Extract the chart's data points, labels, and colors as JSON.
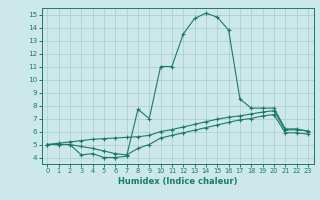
{
  "xlabel": "Humidex (Indice chaleur)",
  "ylabel": "",
  "bg_color": "#cce8e8",
  "grid_color": "#aacccc",
  "line_color": "#1a7a6a",
  "xlim": [
    -0.5,
    23.5
  ],
  "ylim": [
    3.5,
    15.5
  ],
  "xticks": [
    0,
    1,
    2,
    3,
    4,
    5,
    6,
    7,
    8,
    9,
    10,
    11,
    12,
    13,
    14,
    15,
    16,
    17,
    18,
    19,
    20,
    21,
    22,
    23
  ],
  "yticks": [
    4,
    5,
    6,
    7,
    8,
    9,
    10,
    11,
    12,
    13,
    14,
    15
  ],
  "line1_x": [
    0,
    1,
    2,
    3,
    4,
    5,
    6,
    7,
    8,
    9,
    10,
    11,
    12,
    13,
    14,
    15,
    16,
    17,
    18,
    19,
    20,
    21,
    22,
    23
  ],
  "line1_y": [
    5.0,
    5.0,
    5.0,
    4.2,
    4.3,
    4.0,
    4.0,
    4.1,
    7.7,
    7.0,
    11.0,
    11.0,
    13.5,
    14.7,
    15.1,
    14.8,
    13.8,
    8.5,
    7.8,
    7.8,
    7.8,
    6.2,
    6.2,
    6.0
  ],
  "line2_x": [
    0,
    1,
    2,
    3,
    4,
    5,
    6,
    7,
    8,
    9,
    10,
    11,
    12,
    13,
    14,
    15,
    16,
    17,
    18,
    19,
    20,
    21,
    22,
    23
  ],
  "line2_y": [
    5.0,
    5.1,
    5.2,
    5.3,
    5.4,
    5.45,
    5.5,
    5.55,
    5.6,
    5.7,
    6.0,
    6.15,
    6.35,
    6.55,
    6.75,
    6.95,
    7.1,
    7.2,
    7.35,
    7.5,
    7.6,
    6.1,
    6.15,
    6.05
  ],
  "line3_x": [
    0,
    1,
    2,
    3,
    4,
    5,
    6,
    7,
    8,
    9,
    10,
    11,
    12,
    13,
    14,
    15,
    16,
    17,
    18,
    19,
    20,
    21,
    22,
    23
  ],
  "line3_y": [
    5.0,
    5.0,
    5.0,
    4.85,
    4.7,
    4.5,
    4.3,
    4.2,
    4.7,
    5.0,
    5.5,
    5.7,
    5.9,
    6.1,
    6.3,
    6.5,
    6.7,
    6.9,
    7.0,
    7.2,
    7.3,
    5.9,
    5.9,
    5.8
  ]
}
